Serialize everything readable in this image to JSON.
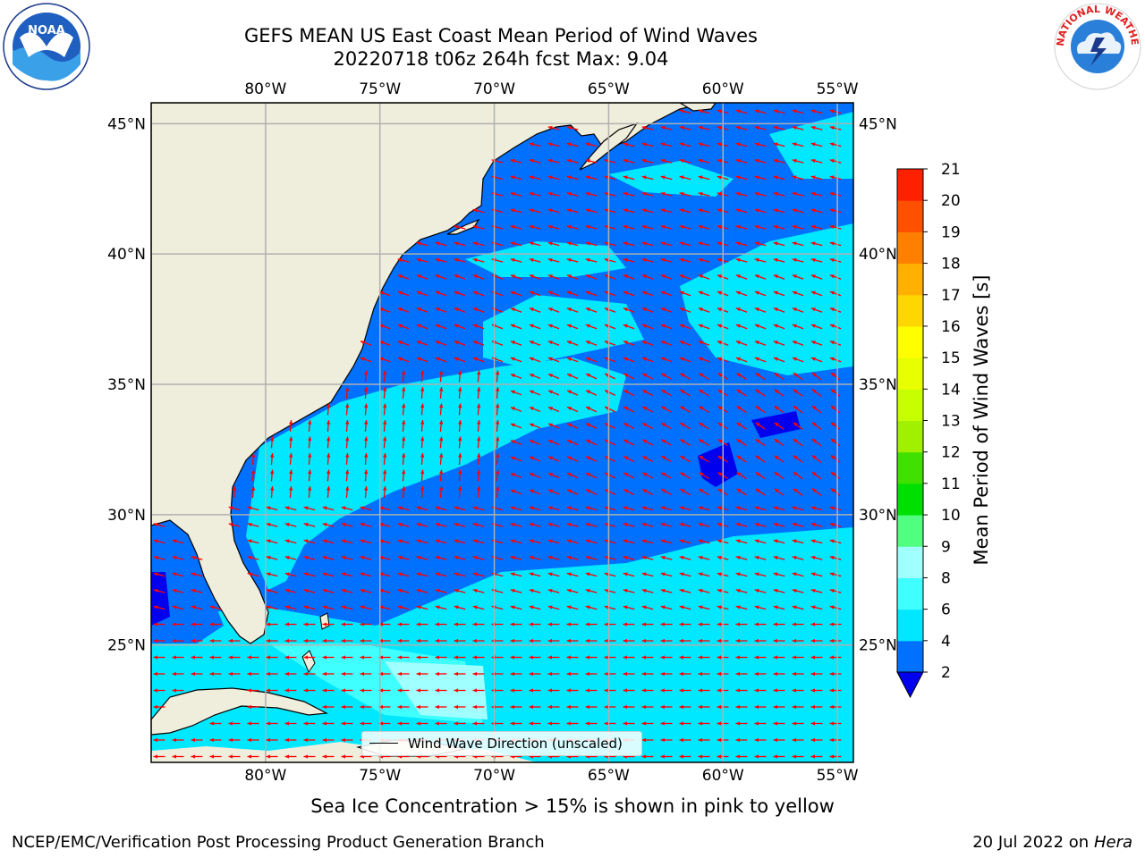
{
  "header": {
    "title_line1": "GEFS MEAN US East Coast Mean Period of Wind Waves",
    "title_line2": "20220718 t06z 264h fcst   Max: 9.04"
  },
  "logos": {
    "left": "noaa-logo",
    "right": "national-weather-service-logo",
    "right_text": "NATIONAL WEATHER SERVICE"
  },
  "map": {
    "lon_range": [
      -85,
      -54.3
    ],
    "lat_range": [
      20.5,
      45.8
    ],
    "lon_ticks": [
      -80,
      -75,
      -70,
      -65,
      -60,
      -55
    ],
    "lat_ticks": [
      45,
      40,
      35,
      30,
      25
    ],
    "lon_tick_labels": [
      "80°W",
      "75°W",
      "70°W",
      "65°W",
      "60°W",
      "55°W"
    ],
    "lat_tick_labels": [
      "45°N",
      "40°N",
      "35°N",
      "30°N",
      "25°N"
    ],
    "land_color": "#efeedc",
    "grid_color": "#b0b0b0",
    "vector_color": "#ff0000",
    "legend_label": "Wind Wave Direction (unscaled)"
  },
  "colorbar": {
    "label": "Mean Period of Wind Waves [s]",
    "levels": [
      2,
      4,
      6,
      8,
      9,
      10,
      11,
      12,
      13,
      14,
      15,
      16,
      17,
      18,
      19,
      20,
      21
    ],
    "level_labels": [
      "2",
      "4",
      "6",
      "8",
      "9",
      "10",
      "11",
      "12",
      "13",
      "14",
      "15",
      "16",
      "17",
      "18",
      "19",
      "20",
      "21"
    ],
    "colors": [
      "#0070ff",
      "#00e8ff",
      "#40ffff",
      "#a0ffff",
      "#50ff80",
      "#00e000",
      "#40e000",
      "#a0f000",
      "#c8ff00",
      "#e8ff00",
      "#ffff00",
      "#ffd700",
      "#ffb000",
      "#ff8000",
      "#ff5000",
      "#ff2000"
    ],
    "under_color": "#0000ee"
  },
  "footer": {
    "subtitle": "Sea Ice Concentration > 15% is shown in pink to yellow",
    "left": "NCEP/EMC/Verification Post Processing Product Generation Branch",
    "right_prefix": "20 Jul 2022 on ",
    "right_host": "Hera"
  }
}
